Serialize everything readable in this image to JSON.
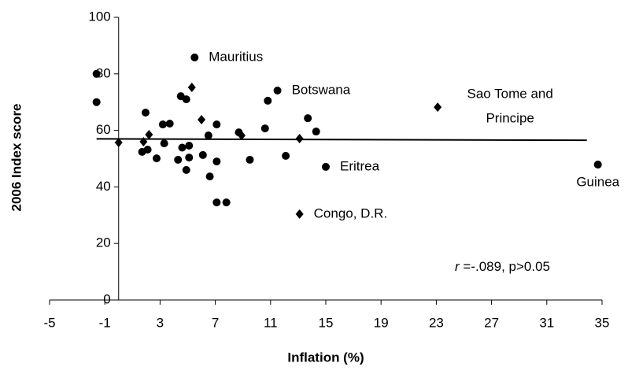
{
  "chart_data": {
    "type": "scatter",
    "xlabel": "Inflation (%)",
    "ylabel": "2006 Index score",
    "xlim": [
      -5,
      35
    ],
    "xticks": [
      -5,
      -1,
      3,
      7,
      11,
      15,
      19,
      23,
      27,
      31,
      35
    ],
    "ylim": [
      0,
      100
    ],
    "yticks": [
      0,
      20,
      40,
      60,
      80,
      100
    ],
    "yaxis_crosses_x": 0,
    "series": [
      {
        "marker": "circle",
        "color": "#000000",
        "x": [
          -1.6,
          -1.6,
          5.5,
          4.5,
          4.9,
          11.5,
          10.8,
          1.95,
          13.7,
          10.6,
          14.3,
          3.2,
          3.7,
          7.1,
          8.7,
          6.5,
          6.1,
          1.7,
          2.1,
          2.75,
          3.3,
          4.6,
          5.1,
          4.3,
          5.1,
          4.9,
          7.1,
          9.5,
          6.6,
          7.1,
          7.8,
          12.1,
          15.0,
          34.7
        ],
        "values": [
          80,
          70,
          85.8,
          72.1,
          71.0,
          74.1,
          70.5,
          66.3,
          64.3,
          60.7,
          59.6,
          62.1,
          62.4,
          62.1,
          59.3,
          58.2,
          51.3,
          52.4,
          53.2,
          50.1,
          55.4,
          53.9,
          54.6,
          49.6,
          50.4,
          46.0,
          49.0,
          49.6,
          43.7,
          34.5,
          34.5,
          51.0,
          47.1,
          47.9
        ],
        "labels": [
          null,
          null,
          [
            "Mauritius"
          ],
          null,
          null,
          [
            "Botswana"
          ],
          null,
          null,
          null,
          null,
          null,
          null,
          null,
          null,
          null,
          null,
          null,
          null,
          null,
          null,
          null,
          null,
          null,
          null,
          null,
          null,
          null,
          null,
          null,
          null,
          null,
          null,
          [
            "Eritrea"
          ],
          [
            "Guinea"
          ]
        ]
      },
      {
        "marker": "diamond",
        "color": "#000000",
        "x": [
          0,
          5.3,
          6.0,
          2.2,
          1.8,
          8.9,
          13.1,
          23.1,
          13.1
        ],
        "values": [
          55.7,
          75.2,
          63.8,
          58.5,
          56,
          58.2,
          57.1,
          68.2,
          30.4
        ],
        "labels": [
          null,
          null,
          null,
          null,
          null,
          null,
          null,
          [
            "Sao Tome and",
            "Principe"
          ],
          [
            "Congo, D.R."
          ]
        ]
      }
    ],
    "trendline": {
      "x": [
        -1.6,
        33.9
      ],
      "values": [
        57.0,
        56.5
      ],
      "color": "#000000"
    },
    "annotation": {
      "italic": "r",
      "text": " =-.089, p>0.05"
    }
  }
}
